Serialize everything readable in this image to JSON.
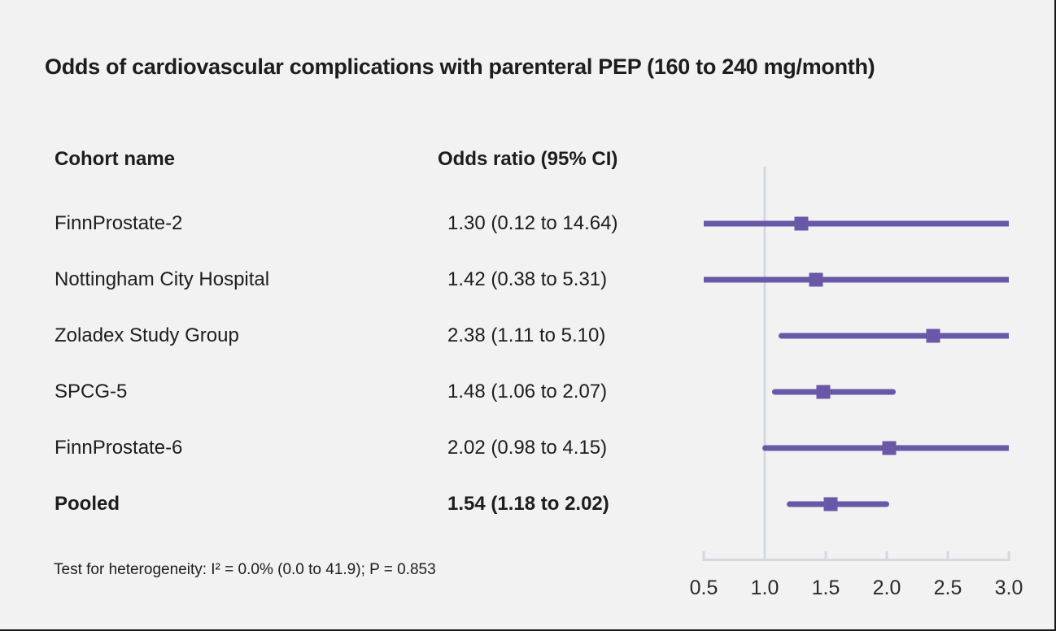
{
  "title": "Odds of cardiovascular complications with parenteral PEP (160 to 240 mg/month)",
  "table": {
    "cohort_header": "Cohort name",
    "or_header": "Odds ratio (95% CI)"
  },
  "footnote": "Test for heterogeneity: I² = 0.0% (0.0 to 41.9); P = 0.853",
  "chart_data": {
    "type": "forest",
    "title": "Odds of cardiovascular complications with parenteral PEP (160 to 240 mg/month)",
    "x_axis": {
      "min": 0.5,
      "max": 3.0,
      "reference_line": 1.0,
      "tick_values": [
        0.5,
        1.0,
        1.5,
        2.0,
        2.5,
        3.0
      ],
      "tick_labels": [
        "0.5",
        "1.0",
        "1.5",
        "2.0",
        "2.5",
        "3.0"
      ],
      "grid": false
    },
    "rows": [
      {
        "name": "FinnProstate-2",
        "label": "1.30 (0.12 to 14.64)",
        "or": 1.3,
        "ci_low": 0.12,
        "ci_high": 14.64,
        "pooled": false
      },
      {
        "name": "Nottingham City Hospital",
        "label": "1.42 (0.38 to 5.31)",
        "or": 1.42,
        "ci_low": 0.38,
        "ci_high": 5.31,
        "pooled": false
      },
      {
        "name": "Zoladex Study Group",
        "label": "2.38 (1.11 to 5.10)",
        "or": 2.38,
        "ci_low": 1.11,
        "ci_high": 5.1,
        "pooled": false
      },
      {
        "name": "SPCG-5",
        "label": "1.48 (1.06 to 2.07)",
        "or": 1.48,
        "ci_low": 1.06,
        "ci_high": 2.07,
        "pooled": false
      },
      {
        "name": "FinnProstate-6",
        "label": "2.02 (0.98 to 4.15)",
        "or": 2.02,
        "ci_low": 0.98,
        "ci_high": 4.15,
        "pooled": false
      },
      {
        "name": "Pooled",
        "label": "1.54 (1.18 to 2.02)",
        "or": 1.54,
        "ci_low": 1.18,
        "ci_high": 2.02,
        "pooled": true
      }
    ]
  },
  "colors": {
    "marker": "#6958a7",
    "axis_line": "#d4d8e2",
    "background": "#f2f2f3",
    "text": "#1d1d1d"
  }
}
